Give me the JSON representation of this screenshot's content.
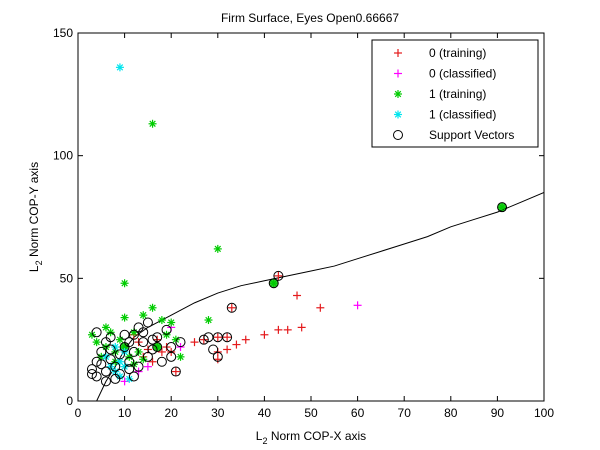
{
  "chart_data": {
    "type": "scatter",
    "title": "Firm Surface, Eyes Open0.66667",
    "xlabel": {
      "prefix": "L",
      "sub": "2",
      "rest": " Norm COP-X axis"
    },
    "ylabel": {
      "prefix": "L",
      "sub": "2",
      "rest": " Norm COP-Y axis"
    },
    "xlim": [
      0,
      100
    ],
    "ylim": [
      0,
      150
    ],
    "xticks": [
      "0",
      "10",
      "20",
      "30",
      "40",
      "50",
      "60",
      "70",
      "80",
      "90",
      "100"
    ],
    "yticks": [
      "0",
      "50",
      "100",
      "150"
    ],
    "grid": false,
    "legend_position": "top-right",
    "series": [
      {
        "name": "0 (training)",
        "marker": "plus",
        "color": "#e41a1c",
        "points": [
          [
            30,
            17
          ],
          [
            30,
            20
          ],
          [
            32,
            21
          ],
          [
            34,
            23
          ],
          [
            36,
            25
          ],
          [
            40,
            27
          ],
          [
            43,
            29
          ],
          [
            45,
            29
          ],
          [
            47,
            43
          ],
          [
            48,
            30
          ],
          [
            52,
            38
          ],
          [
            43,
            51
          ],
          [
            33,
            38
          ],
          [
            27,
            25
          ],
          [
            30,
            26
          ],
          [
            32,
            26
          ],
          [
            25,
            24
          ],
          [
            20,
            20
          ],
          [
            19,
            22
          ],
          [
            17,
            25
          ],
          [
            18,
            20
          ],
          [
            16,
            16
          ],
          [
            14,
            18
          ],
          [
            15,
            21
          ],
          [
            13,
            24
          ],
          [
            12,
            27
          ],
          [
            21,
            12
          ]
        ]
      },
      {
        "name": "0 (classified)",
        "marker": "plus",
        "color": "#ff00ff",
        "points": [
          [
            60,
            39
          ],
          [
            20,
            30
          ],
          [
            15,
            14
          ],
          [
            13,
            12
          ],
          [
            10,
            8
          ],
          [
            22,
            22
          ]
        ]
      },
      {
        "name": "1 (training)",
        "marker": "star",
        "color": "#00cc00",
        "points": [
          [
            16,
            113
          ],
          [
            30,
            62
          ],
          [
            10,
            48
          ],
          [
            42,
            48
          ],
          [
            91,
            79
          ],
          [
            3,
            27
          ],
          [
            4,
            24
          ],
          [
            6,
            30
          ],
          [
            7,
            28
          ],
          [
            5,
            18
          ],
          [
            6,
            22
          ],
          [
            8,
            20
          ],
          [
            9,
            25
          ],
          [
            8,
            16
          ],
          [
            10,
            22
          ],
          [
            11,
            18
          ],
          [
            12,
            15
          ],
          [
            13,
            20
          ],
          [
            14,
            17
          ],
          [
            10,
            34
          ],
          [
            14,
            35
          ],
          [
            16,
            38
          ],
          [
            18,
            33
          ],
          [
            20,
            32
          ],
          [
            21,
            25
          ],
          [
            22,
            18
          ],
          [
            19,
            27
          ],
          [
            28,
            33
          ],
          [
            17,
            22
          ],
          [
            12,
            28
          ]
        ]
      },
      {
        "name": "1 (classified)",
        "marker": "star",
        "color": "#00e5ee",
        "points": [
          [
            9,
            136
          ],
          [
            8,
            12
          ],
          [
            9,
            16
          ],
          [
            10,
            20
          ],
          [
            7,
            14
          ],
          [
            11,
            9
          ],
          [
            6,
            18
          ],
          [
            9,
            10
          ],
          [
            8,
            22
          ],
          [
            10,
            14
          ]
        ]
      }
    ],
    "support_vectors": {
      "name": "Support Vectors",
      "marker": "circle",
      "color": "#000000",
      "points": [
        [
          3,
          13
        ],
        [
          4,
          10
        ],
        [
          5,
          15
        ],
        [
          6,
          12
        ],
        [
          7,
          17
        ],
        [
          8,
          9
        ],
        [
          5,
          20
        ],
        [
          6,
          24
        ],
        [
          4,
          28
        ],
        [
          7,
          26
        ],
        [
          9,
          19
        ],
        [
          10,
          22
        ],
        [
          11,
          16
        ],
        [
          12,
          20
        ],
        [
          13,
          14
        ],
        [
          14,
          24
        ],
        [
          15,
          18
        ],
        [
          16,
          21
        ],
        [
          17,
          26
        ],
        [
          18,
          16
        ],
        [
          19,
          29
        ],
        [
          20,
          22
        ],
        [
          21,
          12
        ],
        [
          22,
          24
        ],
        [
          12,
          27
        ],
        [
          13,
          30
        ],
        [
          15,
          32
        ],
        [
          9,
          11
        ],
        [
          10,
          27
        ],
        [
          11,
          24
        ],
        [
          14,
          28
        ],
        [
          16,
          25
        ],
        [
          27,
          25
        ],
        [
          28,
          26
        ],
        [
          30,
          26
        ],
        [
          29,
          21
        ],
        [
          32,
          26
        ],
        [
          33,
          38
        ],
        [
          30,
          18
        ],
        [
          43,
          51
        ],
        [
          42,
          48
        ],
        [
          91,
          79
        ],
        [
          8,
          14
        ],
        [
          7,
          21
        ],
        [
          6,
          8
        ],
        [
          11,
          13
        ],
        [
          12,
          10
        ],
        [
          17,
          22
        ],
        [
          20,
          18
        ],
        [
          3,
          11
        ],
        [
          4,
          16
        ]
      ]
    },
    "decision_boundary": [
      [
        4,
        0
      ],
      [
        6,
        8
      ],
      [
        8,
        14
      ],
      [
        10,
        21
      ],
      [
        12,
        26
      ],
      [
        15,
        30
      ],
      [
        20,
        35
      ],
      [
        25,
        40
      ],
      [
        30,
        44
      ],
      [
        35,
        47
      ],
      [
        40,
        49
      ],
      [
        45,
        51
      ],
      [
        50,
        53
      ],
      [
        55,
        55
      ],
      [
        60,
        58
      ],
      [
        65,
        61
      ],
      [
        70,
        64
      ],
      [
        75,
        67
      ],
      [
        80,
        71
      ],
      [
        85,
        74
      ],
      [
        90,
        77
      ],
      [
        95,
        81
      ],
      [
        100,
        85
      ]
    ]
  }
}
